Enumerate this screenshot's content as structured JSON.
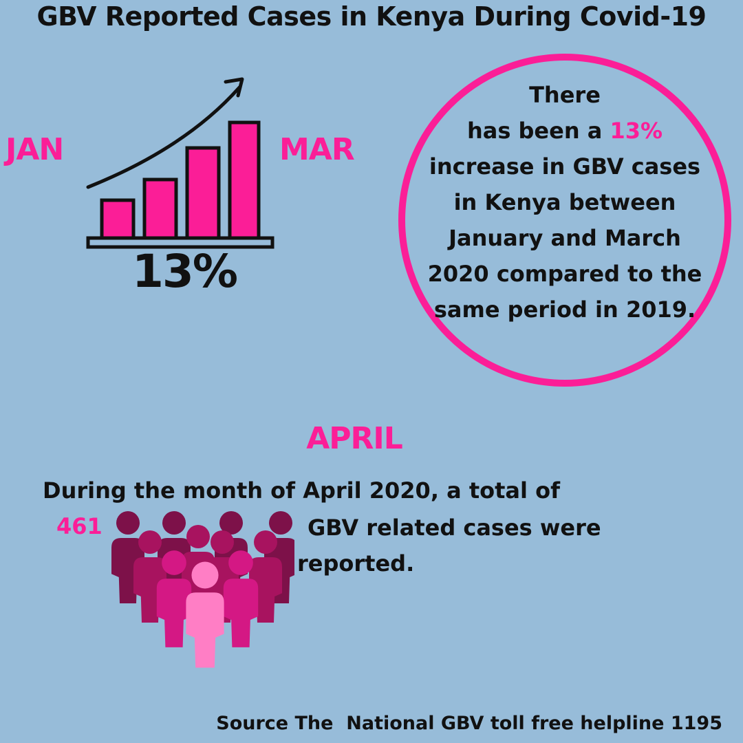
{
  "header": {
    "title": "GBV Reported Cases in Kenya During Covid-19"
  },
  "chart_section": {
    "start_label": "JAN",
    "end_label": "MAR",
    "percent_label": "13%",
    "icon": "rising-bar-chart-icon"
  },
  "circle": {
    "lines": [
      {
        "pre": "There",
        "hl": "",
        "post": ""
      },
      {
        "pre": "has been a ",
        "hl": "13%",
        "post": ""
      },
      {
        "pre": "increase in GBV cases",
        "hl": "",
        "post": ""
      },
      {
        "pre": "in Kenya between",
        "hl": "",
        "post": ""
      },
      {
        "pre": "January and March",
        "hl": "",
        "post": ""
      },
      {
        "pre": "2020 compared to the",
        "hl": "",
        "post": ""
      },
      {
        "pre": "same period in 2019.",
        "hl": "",
        "post": ""
      }
    ]
  },
  "april": {
    "heading": "APRIL",
    "line1": "During the month of April 2020, a total of",
    "count": "461",
    "line2": "GBV related cases were",
    "line3": "reported.",
    "icon": "crowd-of-people-icon"
  },
  "footer": {
    "source": "Source The  National GBV toll free helpline 1195"
  },
  "colors": {
    "background": "#97bcd9",
    "accent": "#fb1e97",
    "text": "#111111",
    "people": [
      "#7d1149",
      "#a8135f",
      "#d41884",
      "#ec3a9d",
      "#ff7ec5"
    ]
  }
}
